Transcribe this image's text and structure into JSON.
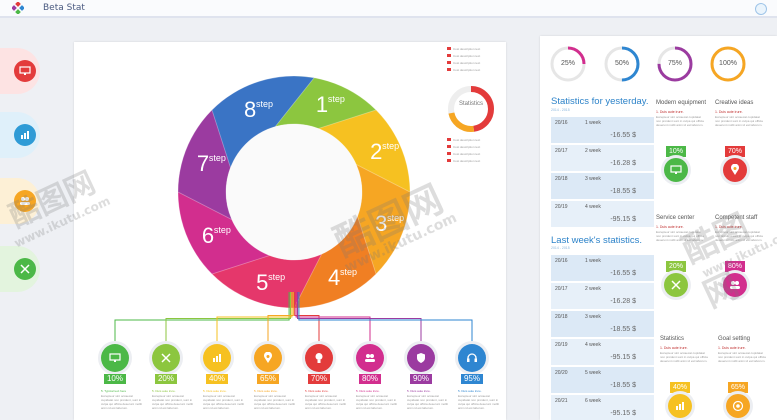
{
  "app": {
    "title": "Beta Stat"
  },
  "colors": {
    "accent": "#2d83c9",
    "red": "#e33b3b",
    "green": "#4cb847",
    "orange": "#f6a623",
    "pink": "#e5376b",
    "purple": "#9b3ba0",
    "blue": "#2e86d1"
  },
  "rail": [
    {
      "icon": "monitor-icon",
      "color": "#e33b3b"
    },
    {
      "icon": "bar-chart-icon",
      "color": "#2e9bd6"
    },
    {
      "icon": "people-icon",
      "color": "#f6a623"
    },
    {
      "icon": "tools-icon",
      "color": "#4cb847"
    }
  ],
  "wheel": {
    "center_label": "",
    "steps": [
      {
        "num": "1",
        "word": "step",
        "color": "#8cc63f"
      },
      {
        "num": "2",
        "word": "step",
        "color": "#f6c121"
      },
      {
        "num": "3",
        "word": "step",
        "color": "#f6a623"
      },
      {
        "num": "4",
        "word": "step",
        "color": "#f07f23"
      },
      {
        "num": "5",
        "word": "step",
        "color": "#e5376b"
      },
      {
        "num": "6",
        "word": "step",
        "color": "#d22e8e"
      },
      {
        "num": "7",
        "word": "step",
        "color": "#9b3ba0"
      },
      {
        "num": "8",
        "word": "step",
        "color": "#3a74c5"
      }
    ]
  },
  "statistics_label": "Statistics",
  "legend_top": [
    "Cost description text",
    "Cost description text",
    "Cost description text",
    "Cost description text"
  ],
  "legend_mid": [
    "Cost description text",
    "Cost description text",
    "Cost description text",
    "Cost description text"
  ],
  "bottom_icons": [
    {
      "icon": "monitor-icon",
      "pct": "10%",
      "color": "#4cb847",
      "caption": "5. Typical text here",
      "text": "Excepteur sint occaecat cupidatat non proident, sunt in culpa qui officia deserunt mollit anim id est laborum."
    },
    {
      "icon": "tools-icon",
      "pct": "20%",
      "color": "#8cc63f",
      "caption": "5. Duis aute irure.",
      "text": "Excepteur sint occaecat cupidatat non proident, sunt in culpa qui officia deserunt mollit anim id est laborum."
    },
    {
      "icon": "bar-chart-icon",
      "pct": "40%",
      "color": "#f6c121",
      "caption": "5. Duis aute irure.",
      "text": "Excepteur sint occaecat cupidatat non proident, sunt in culpa qui officia deserunt mollit anim id est laborum."
    },
    {
      "icon": "location-icon",
      "pct": "65%",
      "color": "#f6a623",
      "caption": "5. Duis aute irure.",
      "text": "Excepteur sint occaecat cupidatat non proident, sunt in culpa qui officia deserunt mollit anim id est laborum."
    },
    {
      "icon": "bulb-icon",
      "pct": "70%",
      "color": "#e33b3b",
      "caption": "5. Duis aute irure.",
      "text": "Excepteur sint occaecat cupidatat non proident, sunt in culpa qui officia deserunt mollit anim id est laborum."
    },
    {
      "icon": "people-icon",
      "pct": "80%",
      "color": "#d22e8e",
      "caption": "5. Duis aute irure.",
      "text": "Excepteur sint occaecat cupidatat non proident, sunt in culpa qui officia deserunt mollit anim id est laborum."
    },
    {
      "icon": "shield-icon",
      "pct": "90%",
      "color": "#9b3ba0",
      "caption": "5. Duis aute irure.",
      "text": "Excepteur sint occaecat cupidatat non proident, sunt in culpa qui officia deserunt mollit anim id est laborum."
    },
    {
      "icon": "headset-icon",
      "pct": "95%",
      "color": "#2e86d1",
      "caption": "5. Duis aute irure.",
      "text": "Excepteur sint occaecat cupidatat non proident, sunt in culpa qui officia deserunt mollit anim id est laborum."
    }
  ],
  "rings": [
    {
      "pct": "25%",
      "fraction": 0.25,
      "color": "#d22e8e"
    },
    {
      "pct": "50%",
      "fraction": 0.5,
      "color": "#2e86d1"
    },
    {
      "pct": "75%",
      "fraction": 0.75,
      "color": "#9b3ba0"
    },
    {
      "pct": "100%",
      "fraction": 1.0,
      "color": "#f6a623"
    }
  ],
  "yesterday": {
    "title": "Statistics for yesterday.",
    "sub": "2014 - 2015",
    "rows": [
      {
        "date": "20/16",
        "week": "1 week",
        "value": "-16.55 $"
      },
      {
        "date": "20/17",
        "week": "2 week",
        "value": "-16.28 $"
      },
      {
        "date": "20/18",
        "week": "3 week",
        "value": "-18.55 $"
      },
      {
        "date": "20/19",
        "week": "4 week",
        "value": "-95.15 $"
      }
    ]
  },
  "lastweek": {
    "title": "Last week's statistics.",
    "sub": "2014 - 2015",
    "rows": [
      {
        "date": "20/16",
        "week": "1 week",
        "value": "-16.55 $"
      },
      {
        "date": "20/17",
        "week": "2 week",
        "value": "-16.28 $"
      },
      {
        "date": "20/18",
        "week": "3 week",
        "value": "-18.55 $"
      },
      {
        "date": "20/19",
        "week": "4 week",
        "value": "-95.15 $"
      },
      {
        "date": "20/20",
        "week": "5 week",
        "value": "-18.55 $"
      },
      {
        "date": "20/21",
        "week": "6 week",
        "value": "-95.15 $"
      }
    ]
  },
  "side_cards": [
    {
      "title": "Modern equipment",
      "caption": "1. Duis aute irure.",
      "text": "Excepteur sint occaecat cupidatat non proident sunt in culpa qui officia deserunt mollit anim id est laborum.",
      "pct": "10%",
      "color": "#4cb847",
      "icon": "monitor-icon"
    },
    {
      "title": "Creative ideas",
      "caption": "1. Duis aute irure.",
      "text": "Excepteur sint occaecat cupidatat non proident sunt in culpa qui officia deserunt mollit anim id est laborum.",
      "pct": "70%",
      "color": "#e33b3b",
      "icon": "location-icon"
    },
    {
      "title": "Service center",
      "caption": "1. Duis aute irure.",
      "text": "Excepteur sint occaecat cupidatat non proident sunt in culpa qui officia deserunt mollit anim id est laborum.",
      "pct": "20%",
      "color": "#8cc63f",
      "icon": "tools-icon"
    },
    {
      "title": "Competent staff",
      "caption": "1. Duis aute irure.",
      "text": "Excepteur sint occaecat cupidatat non proident sunt in culpa qui officia deserunt mollit anim id est laborum.",
      "pct": "80%",
      "color": "#d22e8e",
      "icon": "people-icon"
    },
    {
      "title": "Statistics",
      "caption": "1. Duis aute irure.",
      "text": "Excepteur sint occaecat cupidatat non proident sunt in culpa qui officia deserunt mollit anim id est laborum.",
      "pct": "40%",
      "color": "#f6c121",
      "icon": "bar-chart-icon"
    },
    {
      "title": "Goal setting",
      "caption": "1. Duis aute irure.",
      "text": "Excepteur sint occaecat cupidatat non proident sunt in culpa qui officia deserunt mollit anim id est laborum.",
      "pct": "65%",
      "color": "#f6a623",
      "icon": "target-icon"
    }
  ],
  "watermark": {
    "cn": "酷图网",
    "url": "www.ikutu.com"
  }
}
